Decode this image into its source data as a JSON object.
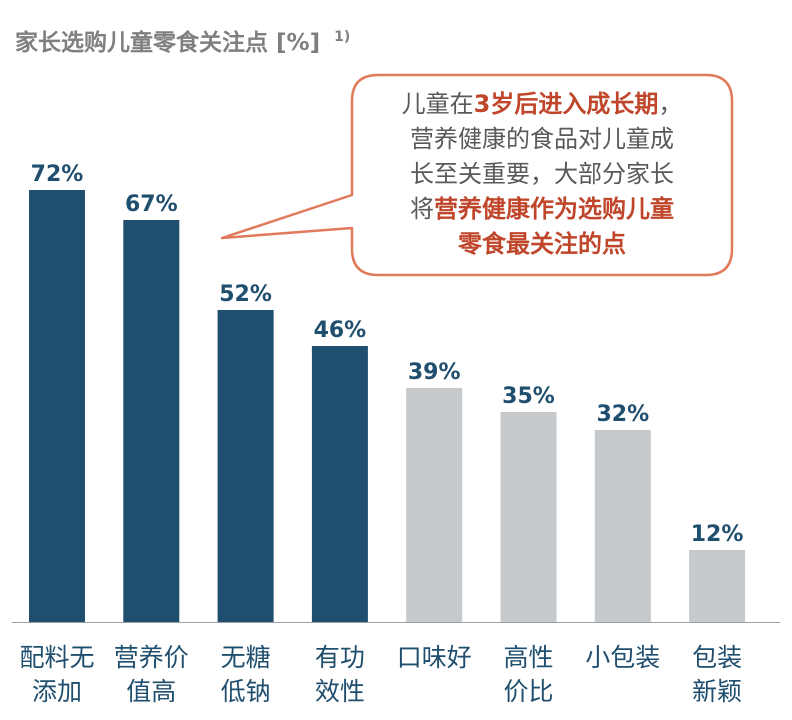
{
  "chart_data": {
    "type": "bar",
    "title": "家长选购儿童零食关注点 [%]",
    "title_note": "1)",
    "categories": [
      {
        "line1": "配料无",
        "line2": "添加"
      },
      {
        "line1": "营养价",
        "line2": "值高"
      },
      {
        "line1": "无糖",
        "line2": "低钠"
      },
      {
        "line1": "有功",
        "line2": "效性"
      },
      {
        "line1": "口味好",
        "line2": ""
      },
      {
        "line1": "高性",
        "line2": "价比"
      },
      {
        "line1": "小包装",
        "line2": ""
      },
      {
        "line1": "包装",
        "line2": "新颖"
      }
    ],
    "values": [
      72,
      67,
      52,
      46,
      39,
      35,
      32,
      12
    ],
    "value_labels": [
      "72%",
      "67%",
      "52%",
      "46%",
      "39%",
      "35%",
      "32%",
      "12%"
    ],
    "highlighted": [
      true,
      true,
      true,
      true,
      false,
      false,
      false,
      false
    ],
    "ylim": [
      0,
      72
    ],
    "grid": false,
    "colors": {
      "highlight": "#1f4e6e",
      "normal": "#c6cacd",
      "label": "#1f4e6e",
      "title": "#7f7f7f",
      "callout_border": "#e07a5a",
      "callout_accent": "#c0462b",
      "category_text": "#1f4e6e"
    },
    "annotation": {
      "lines": [
        [
          {
            "text": "儿童在",
            "bold": false
          },
          {
            "text": "3岁后进入成长期",
            "bold": true
          },
          {
            "text": "，",
            "bold": false
          }
        ],
        [
          {
            "text": "营养健康的食品对儿童成",
            "bold": false
          }
        ],
        [
          {
            "text": "长至关重要，大部分家长",
            "bold": false
          }
        ],
        [
          {
            "text": "将",
            "bold": false
          },
          {
            "text": "营养健康作为选购儿童",
            "bold": true
          }
        ],
        [
          {
            "text": "零食最关注的点",
            "bold": true
          }
        ]
      ]
    }
  }
}
